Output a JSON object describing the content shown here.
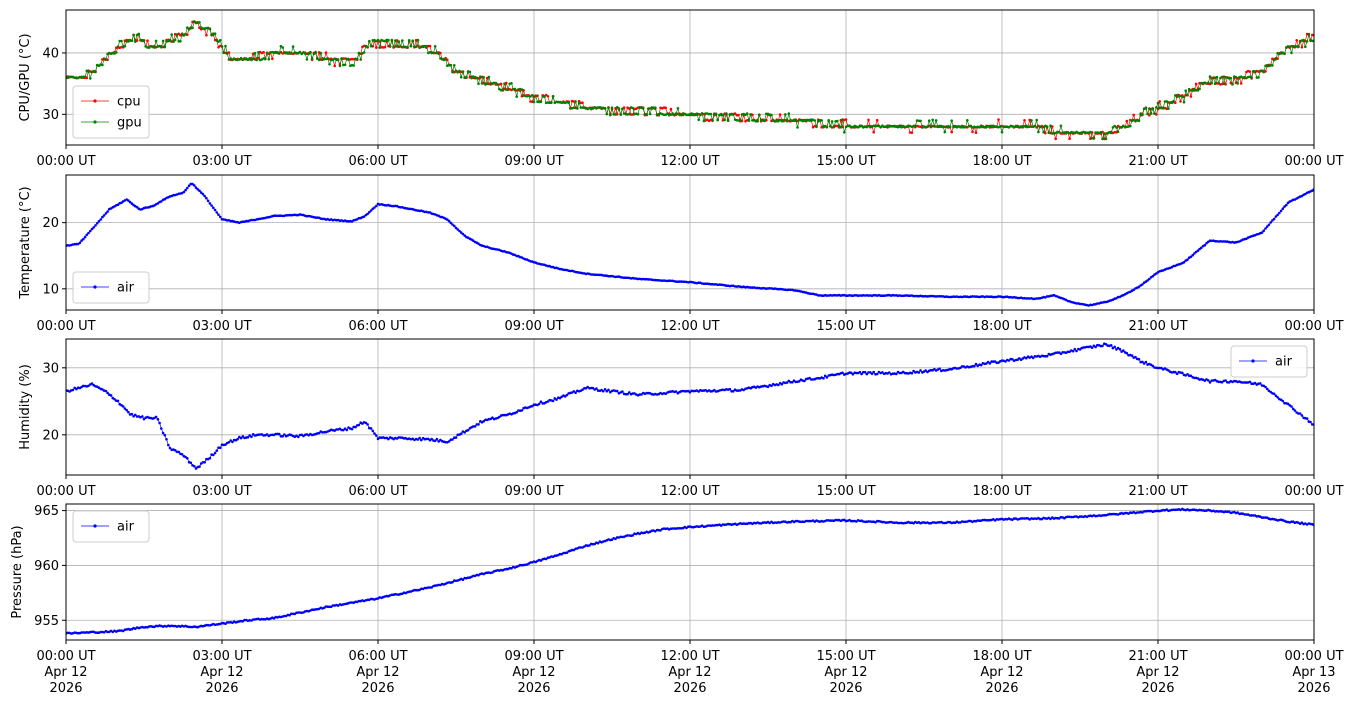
{
  "chart_data": [
    {
      "type": "line",
      "ylabel": "CPU/GPU (°C)",
      "xlim": [
        "2026-04-12T00:00Z",
        "2026-04-13T00:00Z"
      ],
      "ylim": [
        25,
        47
      ],
      "yticks": [
        30,
        40
      ],
      "grid": true,
      "legend_position": "lower-left",
      "x_tick_labels": [
        "00:00 UT",
        "03:00 UT",
        "06:00 UT",
        "09:00 UT",
        "12:00 UT",
        "15:00 UT",
        "18:00 UT",
        "21:00 UT",
        "00:00 UT"
      ],
      "series": [
        {
          "name": "cpu",
          "color": "#ff0000",
          "x": [
            "00:00",
            "00:20",
            "00:40",
            "01:00",
            "01:20",
            "01:40",
            "02:00",
            "02:20",
            "02:30",
            "02:50",
            "03:10",
            "03:30",
            "04:00",
            "04:30",
            "05:00",
            "05:30",
            "05:50",
            "06:20",
            "06:50",
            "07:10",
            "07:30",
            "08:00",
            "08:30",
            "09:00",
            "09:30",
            "10:00",
            "11:00",
            "12:00",
            "13:00",
            "14:00",
            "15:00",
            "16:00",
            "17:00",
            "18:00",
            "18:40",
            "19:00",
            "19:30",
            "20:00",
            "20:20",
            "20:40",
            "21:00",
            "21:30",
            "22:00",
            "22:30",
            "23:00",
            "23:30",
            "24:00"
          ],
          "values": [
            36,
            36,
            38,
            41,
            42.5,
            41,
            42,
            43.5,
            45,
            43,
            39,
            39,
            40,
            40,
            39,
            38.5,
            41.5,
            41.5,
            41,
            40,
            37,
            35.5,
            34.5,
            32.5,
            32,
            31,
            30.5,
            30,
            29.5,
            29,
            28,
            28,
            28,
            28,
            28,
            27,
            27,
            26.5,
            28,
            30,
            31,
            33,
            35.5,
            35.5,
            37,
            40.5,
            43
          ]
        },
        {
          "name": "gpu",
          "color": "#008000",
          "x": [
            "00:00",
            "00:20",
            "00:40",
            "01:00",
            "01:20",
            "01:40",
            "02:00",
            "02:20",
            "02:30",
            "02:50",
            "03:10",
            "03:30",
            "04:00",
            "04:30",
            "05:00",
            "05:30",
            "05:50",
            "06:20",
            "06:50",
            "07:10",
            "07:30",
            "08:00",
            "08:30",
            "09:00",
            "09:30",
            "10:00",
            "11:00",
            "12:00",
            "13:00",
            "14:00",
            "15:00",
            "16:00",
            "17:00",
            "18:00",
            "18:40",
            "19:00",
            "19:30",
            "20:00",
            "20:20",
            "20:40",
            "21:00",
            "21:30",
            "22:00",
            "22:30",
            "23:00",
            "23:30",
            "24:00"
          ],
          "values": [
            35.5,
            36,
            38,
            41,
            42.5,
            41,
            42,
            43.5,
            45,
            43,
            39,
            39,
            40,
            40,
            39,
            38.5,
            41.5,
            41.5,
            41,
            40,
            37,
            35.5,
            34.5,
            32.5,
            32,
            31,
            30.5,
            30,
            29.5,
            29,
            28,
            28,
            28,
            28,
            28,
            27,
            27,
            26.5,
            28,
            30,
            31,
            33,
            35.5,
            35.5,
            37,
            40.5,
            42.5
          ]
        }
      ]
    },
    {
      "type": "line",
      "ylabel": "Temperature (°C)",
      "xlim": [
        "2026-04-12T00:00Z",
        "2026-04-13T00:00Z"
      ],
      "ylim": [
        6.8,
        27.2
      ],
      "yticks": [
        10,
        20
      ],
      "grid": true,
      "legend_position": "lower-left",
      "x_tick_labels": [
        "00:00 UT",
        "03:00 UT",
        "06:00 UT",
        "09:00 UT",
        "12:00 UT",
        "15:00 UT",
        "18:00 UT",
        "21:00 UT",
        "00:00 UT"
      ],
      "series": [
        {
          "name": "air",
          "color": "#0000ff",
          "x": [
            "00:00",
            "00:15",
            "00:30",
            "00:50",
            "01:10",
            "01:25",
            "01:40",
            "02:00",
            "02:15",
            "02:25",
            "02:40",
            "03:00",
            "03:20",
            "03:40",
            "04:00",
            "04:30",
            "05:00",
            "05:30",
            "05:45",
            "06:00",
            "06:20",
            "06:40",
            "07:00",
            "07:20",
            "07:40",
            "08:00",
            "08:30",
            "09:00",
            "09:30",
            "10:00",
            "11:00",
            "12:00",
            "13:00",
            "14:00",
            "14:30",
            "15:00",
            "16:00",
            "17:00",
            "18:00",
            "18:40",
            "19:00",
            "19:20",
            "19:40",
            "20:00",
            "20:20",
            "20:40",
            "21:00",
            "21:30",
            "22:00",
            "22:30",
            "23:00",
            "23:30",
            "24:00"
          ],
          "values": [
            16.5,
            16.8,
            19,
            22,
            23.5,
            22,
            22.5,
            24,
            24.5,
            26,
            24,
            20.5,
            20,
            20.5,
            21,
            21.2,
            20.5,
            20.2,
            21,
            22.8,
            22.5,
            22,
            21.5,
            20.5,
            18,
            16.5,
            15.5,
            14,
            13,
            12.3,
            11.5,
            11,
            10.3,
            9.8,
            9,
            9,
            9,
            8.8,
            8.8,
            8.5,
            9,
            8,
            7.5,
            8,
            9,
            10.5,
            12.5,
            14,
            17.3,
            17,
            18.5,
            23,
            25
          ]
        }
      ]
    },
    {
      "type": "line",
      "ylabel": "Humidity (%)",
      "xlim": [
        "2026-04-12T00:00Z",
        "2026-04-13T00:00Z"
      ],
      "ylim": [
        14,
        34.3
      ],
      "yticks": [
        20,
        30
      ],
      "grid": true,
      "legend_position": "upper-right",
      "x_tick_labels": [
        "00:00 UT",
        "03:00 UT",
        "06:00 UT",
        "09:00 UT",
        "12:00 UT",
        "15:00 UT",
        "18:00 UT",
        "21:00 UT",
        "00:00 UT"
      ],
      "series": [
        {
          "name": "air",
          "color": "#0000ff",
          "x": [
            "00:00",
            "00:15",
            "00:30",
            "00:45",
            "01:00",
            "01:15",
            "01:30",
            "01:45",
            "02:00",
            "02:15",
            "02:30",
            "02:45",
            "03:00",
            "03:20",
            "03:40",
            "04:00",
            "04:30",
            "05:00",
            "05:30",
            "05:45",
            "06:00",
            "06:30",
            "07:00",
            "07:20",
            "07:40",
            "08:00",
            "08:30",
            "09:00",
            "09:30",
            "10:00",
            "10:30",
            "11:00",
            "12:00",
            "13:00",
            "14:00",
            "14:30",
            "15:00",
            "16:00",
            "17:00",
            "18:00",
            "19:00",
            "19:30",
            "20:00",
            "20:20",
            "20:40",
            "21:00",
            "21:30",
            "22:00",
            "22:30",
            "23:00",
            "23:30",
            "24:00"
          ],
          "values": [
            26.5,
            27,
            27.5,
            26.5,
            25,
            23,
            22.5,
            22.5,
            18,
            17,
            15,
            16.5,
            18.5,
            19.5,
            20,
            20,
            19.8,
            20.5,
            21,
            22,
            19.5,
            19.5,
            19.3,
            19,
            20.5,
            22,
            23,
            24.5,
            25.5,
            27,
            26.5,
            26,
            26.5,
            26.7,
            28,
            28.5,
            29.2,
            29.2,
            29.8,
            31,
            32,
            32.8,
            33.5,
            32.5,
            31,
            30,
            29,
            28,
            28,
            27.5,
            24.5,
            21.5
          ]
        }
      ]
    },
    {
      "type": "line",
      "ylabel": "Pressure (hPa)",
      "xlim": [
        "2026-04-12T00:00Z",
        "2026-04-13T00:00Z"
      ],
      "ylim": [
        953.2,
        965.6
      ],
      "yticks": [
        955,
        960,
        965
      ],
      "grid": true,
      "legend_position": "upper-left",
      "x_tick_labels": [
        "00:00 UT\nApr 12\n2026",
        "03:00 UT\nApr 12\n2026",
        "06:00 UT\nApr 12\n2026",
        "09:00 UT\nApr 12\n2026",
        "12:00 UT\nApr 12\n2026",
        "15:00 UT\nApr 12\n2026",
        "18:00 UT\nApr 12\n2026",
        "21:00 UT\nApr 12\n2026",
        "00:00 UT\nApr 13\n2026"
      ],
      "series": [
        {
          "name": "air",
          "color": "#0000ff",
          "x": [
            "00:00",
            "00:30",
            "01:00",
            "01:30",
            "02:00",
            "02:30",
            "03:00",
            "03:30",
            "04:00",
            "04:30",
            "05:00",
            "05:30",
            "06:00",
            "06:30",
            "07:00",
            "07:30",
            "08:00",
            "08:30",
            "09:00",
            "09:30",
            "10:00",
            "10:30",
            "11:00",
            "11:30",
            "12:00",
            "13:00",
            "14:00",
            "15:00",
            "16:00",
            "17:00",
            "18:00",
            "19:00",
            "20:00",
            "21:00",
            "21:30",
            "22:00",
            "22:30",
            "23:00",
            "23:30",
            "24:00"
          ],
          "values": [
            953.8,
            953.9,
            954.0,
            954.4,
            954.5,
            954.4,
            954.7,
            955.0,
            955.2,
            955.7,
            956.2,
            956.6,
            957.0,
            957.5,
            958.0,
            958.6,
            959.2,
            959.7,
            960.3,
            961.0,
            961.8,
            962.4,
            962.9,
            963.3,
            963.5,
            963.8,
            964.0,
            964.1,
            963.9,
            963.9,
            964.2,
            964.3,
            964.6,
            965.0,
            965.1,
            965.0,
            964.8,
            964.4,
            964.0,
            963.7
          ]
        }
      ]
    }
  ]
}
